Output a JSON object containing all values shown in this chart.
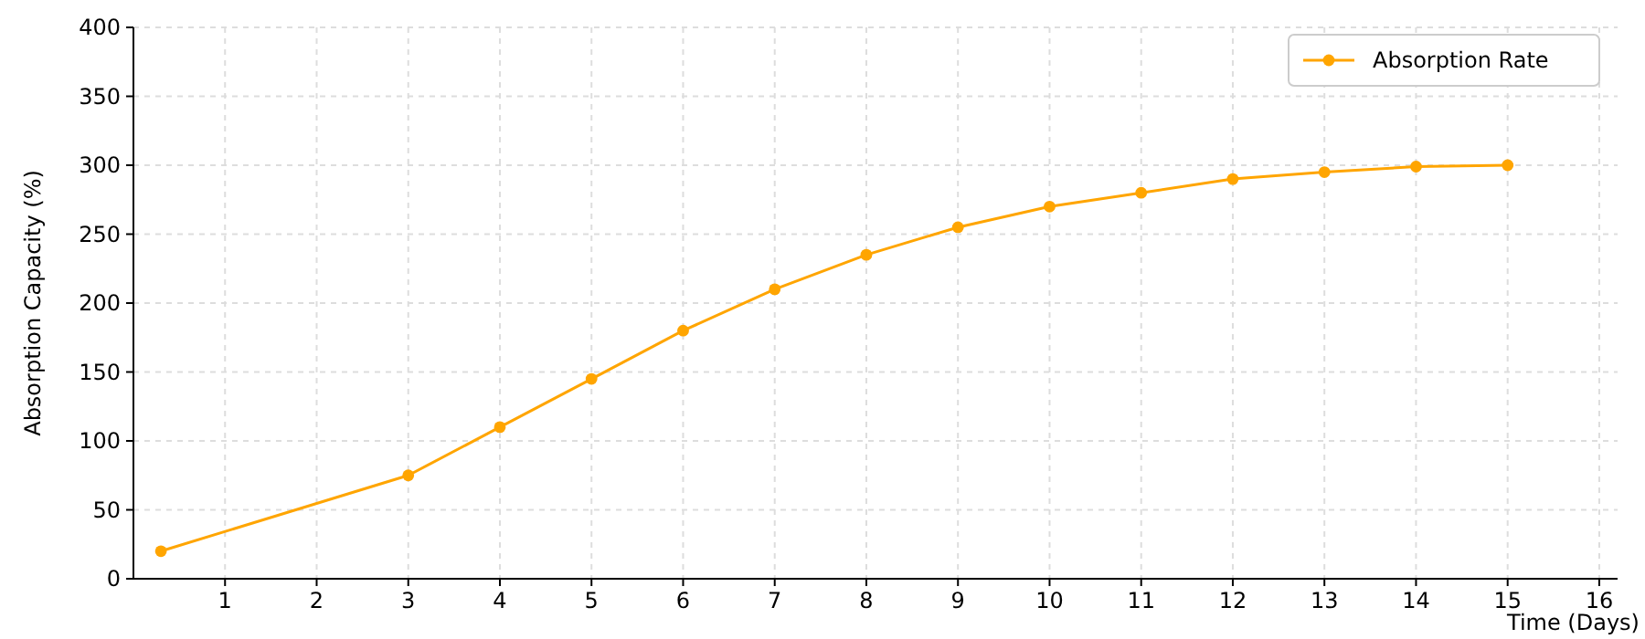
{
  "chart_data": {
    "type": "line",
    "xlabel": "Time (Days)",
    "ylabel": "Absorption Capacity (%)",
    "x": [
      0.3,
      3,
      4,
      5,
      6,
      7,
      8,
      9,
      10,
      11,
      12,
      13,
      14,
      15
    ],
    "series": [
      {
        "name": "Absorption Rate",
        "color": "#ffa500",
        "values": [
          20,
          75,
          110,
          145,
          180,
          210,
          235,
          255,
          270,
          280,
          290,
          295,
          299,
          300
        ]
      }
    ],
    "xlim": [
      0,
      16.2
    ],
    "xticks": [
      1,
      2,
      3,
      4,
      5,
      6,
      7,
      8,
      9,
      10,
      11,
      12,
      13,
      14,
      15,
      16
    ],
    "ylim": [
      0,
      400
    ],
    "yticks": [
      0,
      50,
      100,
      150,
      200,
      250,
      300,
      350,
      400
    ],
    "grid": true,
    "legend": "top right",
    "marker": "circle",
    "line_style": "solid"
  }
}
